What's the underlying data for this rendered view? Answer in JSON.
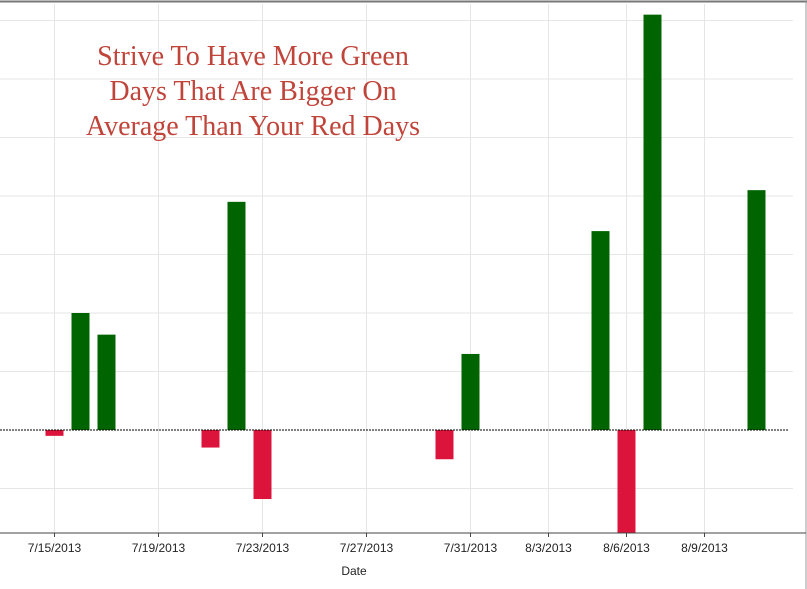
{
  "chart_data": {
    "type": "bar",
    "xlabel": "Date",
    "x_tick_labels": [
      "7/15/2013",
      "7/19/2013",
      "7/23/2013",
      "7/27/2013",
      "7/31/2013",
      "8/3/2013",
      "8/6/2013",
      "8/9/2013"
    ],
    "annotation": [
      "Strive To Have More Green",
      "Days That Are Bigger On",
      "Average Than Your Red Days"
    ],
    "series": [
      {
        "dates": [
          "7/15/2013",
          "7/16/2013",
          "7/17/2013",
          "7/21/2013",
          "7/22/2013",
          "7/23/2013",
          "7/30/2013",
          "7/31/2013",
          "8/5/2013",
          "8/6/2013",
          "8/7/2013",
          "8/11/2013"
        ],
        "values": [
          -0.1,
          2.0,
          1.63,
          -0.3,
          3.9,
          -1.18,
          -0.5,
          1.3,
          3.4,
          -1.8,
          7.1,
          4.1
        ]
      }
    ],
    "ylim": [
      -1.75,
      7.4
    ],
    "y_gridlines": [
      -1,
      0,
      1,
      2,
      3,
      4,
      5,
      6,
      7
    ],
    "colors": {
      "positive": "#006400",
      "negative": "#dc143c",
      "grid": "#e6e6e6",
      "zero_line": "#000000"
    }
  }
}
